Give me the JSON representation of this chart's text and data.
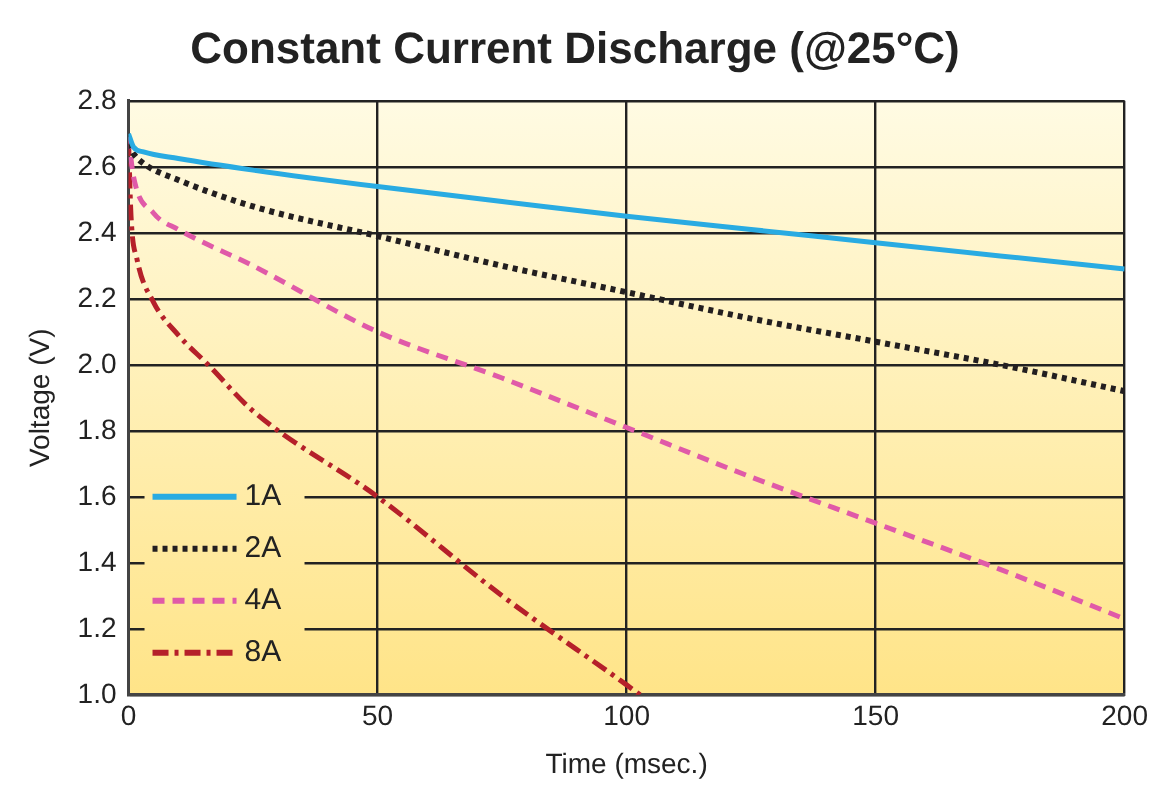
{
  "chart_data": {
    "type": "line",
    "title": "Constant Current Discharge (@25°C)",
    "xlabel": "Time (msec.)",
    "ylabel": "Voltage (V)",
    "xlim": [
      0,
      200
    ],
    "xticks": [
      0,
      50,
      100,
      150,
      200
    ],
    "ylim": [
      1.0,
      2.8
    ],
    "yticks": [
      {
        "value": 1,
        "label": "1.0"
      },
      1.2,
      1.4,
      1.6,
      1.8,
      {
        "value": 2,
        "label": "2.0"
      },
      2.2,
      2.4,
      2.6,
      2.8
    ],
    "grid": true,
    "legend": "bottom left",
    "marker": "none",
    "series": [
      {
        "name": "1A",
        "color": "#29abe2",
        "line_style": "solid",
        "x": [
          0,
          1,
          3,
          10,
          25,
          50,
          75,
          100,
          125,
          150,
          175,
          200
        ],
        "values": [
          2.7,
          2.66,
          2.645,
          2.625,
          2.59,
          2.54,
          2.495,
          2.45,
          2.41,
          2.37,
          2.33,
          2.29
        ]
      },
      {
        "name": "2A",
        "color": "#231f20",
        "line_style": "dotted",
        "x": [
          0,
          1,
          3,
          10,
          25,
          50,
          75,
          100,
          125,
          150,
          175,
          200
        ],
        "values": [
          2.67,
          2.64,
          2.61,
          2.56,
          2.48,
          2.39,
          2.3,
          2.22,
          2.14,
          2.07,
          2.0,
          1.92
        ]
      },
      {
        "name": "4A",
        "color": "#e05aa8",
        "line_style": "dashed",
        "x": [
          0,
          1,
          5,
          10,
          25,
          50,
          75,
          100,
          125,
          150,
          175,
          200
        ],
        "values": [
          2.69,
          2.57,
          2.46,
          2.41,
          2.3,
          2.1,
          1.96,
          1.81,
          1.66,
          1.52,
          1.38,
          1.23
        ]
      },
      {
        "name": "8A",
        "color": "#b5202a",
        "line_style": "dashdot",
        "x": [
          0,
          0.5,
          1.7,
          5,
          10,
          16,
          25,
          50,
          75,
          100,
          102.7
        ],
        "values": [
          2.68,
          2.45,
          2.32,
          2.19,
          2.09,
          2.0,
          1.86,
          1.6,
          1.3,
          1.03,
          1.0
        ]
      }
    ]
  }
}
